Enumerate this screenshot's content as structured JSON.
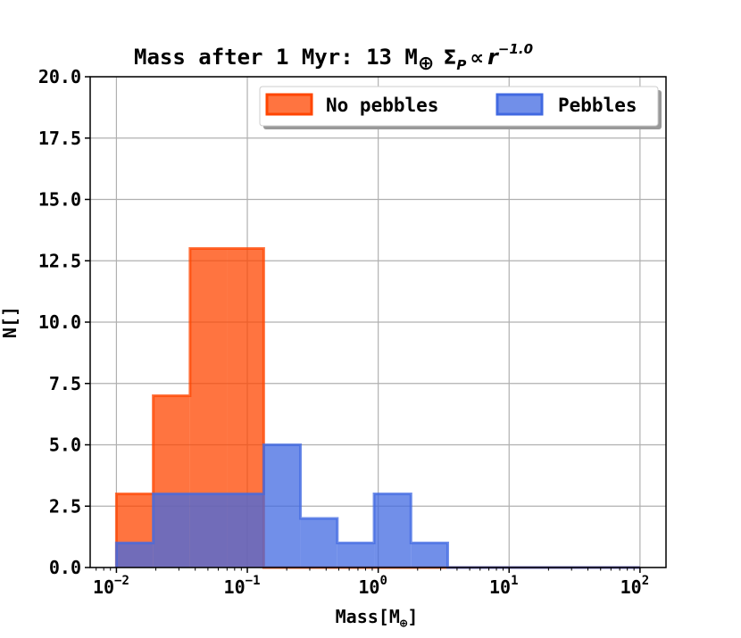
{
  "chart_data": {
    "type": "bar",
    "title": {
      "prefix": "Mass after 1 Myr: 13 M",
      "prefix_sub": "⊕",
      "sigma": "Σ",
      "sigma_sub": "P",
      "propto": "∝",
      "r": "r",
      "exponent": "−1.0"
    },
    "xlabel": {
      "text": "Mass[M",
      "sub": "⊕",
      "close": "]"
    },
    "ylabel": "N[]",
    "x_scale": "log",
    "xlim": [
      0.0063,
      158
    ],
    "ylim": [
      0,
      20
    ],
    "x_ticks": [
      {
        "base": "10",
        "exp": "−2",
        "value": 0.01
      },
      {
        "base": "10",
        "exp": "−1",
        "value": 0.1
      },
      {
        "base": "10",
        "exp": "0",
        "value": 1
      },
      {
        "base": "10",
        "exp": "1",
        "value": 10
      },
      {
        "base": "10",
        "exp": "2",
        "value": 100
      }
    ],
    "y_ticks": [
      "0.0",
      "2.5",
      "5.0",
      "7.5",
      "10.0",
      "12.5",
      "15.0",
      "17.5",
      "20.0"
    ],
    "grid": true,
    "bin_edges": [
      0.01,
      0.0191,
      0.0365,
      0.0697,
      0.1334,
      0.2548,
      0.4869,
      0.9304,
      1.778,
      3.396,
      6.491,
      12.4,
      23.7,
      45.29,
      100
    ],
    "series": [
      {
        "name": "No pebbles",
        "color": "#ff4500",
        "values": [
          3,
          7,
          13,
          13,
          0,
          0,
          0,
          0,
          0,
          0,
          0,
          0,
          0,
          0
        ]
      },
      {
        "name": "Pebbles",
        "color": "#4169e1",
        "values": [
          1,
          3,
          3,
          3,
          5,
          2,
          1,
          3,
          1,
          0,
          0,
          0,
          0,
          0
        ]
      }
    ],
    "legend_position": "top-right"
  }
}
